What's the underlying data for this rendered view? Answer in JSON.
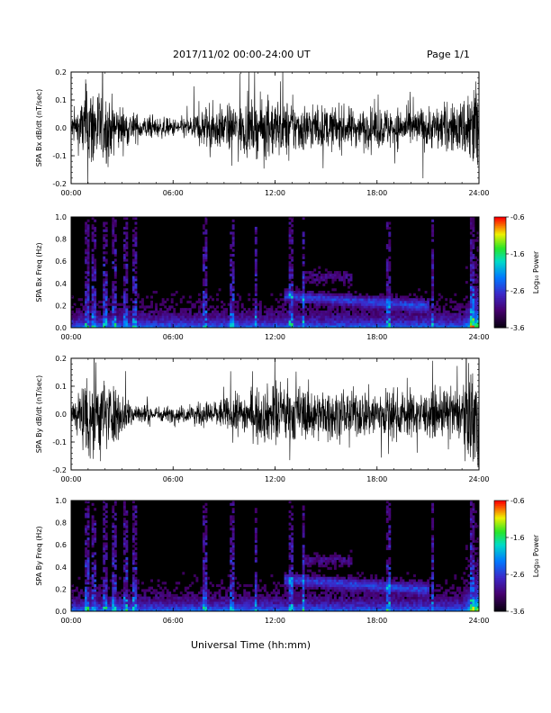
{
  "header": {
    "date_range": "2017/11/02  00:00-24:00 UT",
    "page": "Page 1/1"
  },
  "xaxis_title": "Universal Time (hh:mm)",
  "colorbar": {
    "label": "Log₁₀ Power",
    "ticks": [
      "-0.6",
      "-1.6",
      "-2.6",
      "-3.6"
    ],
    "range": [
      -3.6,
      -0.6
    ]
  },
  "chart_data": [
    {
      "type": "line",
      "ylabel": "SPA Bx dB/dt (nT/sec)",
      "xlim": [
        0,
        24
      ],
      "ylim": [
        -0.2,
        0.2
      ],
      "xticks": [
        "00:00",
        "06:00",
        "12:00",
        "18:00",
        "24:00"
      ],
      "yticks": [
        "0.2",
        "0.1",
        "0.0",
        "-0.1",
        "-0.2"
      ],
      "series": [
        {
          "envelope_hours": [
            0,
            0.5,
            1,
            1.5,
            2,
            3,
            4,
            5,
            6,
            7,
            8,
            9,
            10,
            11,
            12,
            13,
            14,
            15,
            16,
            17,
            18,
            19,
            20,
            21,
            22,
            23,
            23.5,
            24
          ],
          "amplitude": [
            0.05,
            0.09,
            0.2,
            0.16,
            0.13,
            0.08,
            0.05,
            0.04,
            0.035,
            0.045,
            0.09,
            0.08,
            0.1,
            0.1,
            0.12,
            0.1,
            0.09,
            0.08,
            0.08,
            0.07,
            0.08,
            0.08,
            0.07,
            0.08,
            0.09,
            0.1,
            0.2,
            0.2
          ]
        }
      ]
    },
    {
      "type": "heatmap",
      "ylabel": "SPA Bx Freq (Hz)",
      "xlim": [
        0,
        24
      ],
      "ylim": [
        0,
        1.0
      ],
      "xticks": [
        "00:00",
        "06:00",
        "12:00",
        "18:00",
        "24:00"
      ],
      "yticks": [
        "1.0",
        "0.8",
        "0.6",
        "0.4",
        "0.2",
        "0.0"
      ],
      "colorbar_label": "Log₁₀ Power",
      "colorbar_range": [
        -3.6,
        -0.6
      ]
    },
    {
      "type": "line",
      "ylabel": "SPA By dB/dt (nT/sec)",
      "xlim": [
        0,
        24
      ],
      "ylim": [
        -0.2,
        0.2
      ],
      "xticks": [
        "00:00",
        "06:00",
        "12:00",
        "18:00",
        "24:00"
      ],
      "yticks": [
        "0.2",
        "0.1",
        "0.0",
        "-0.1",
        "-0.2"
      ],
      "series": [
        {
          "envelope_hours": [
            0,
            0.5,
            1,
            1.5,
            2,
            3,
            4,
            5,
            6,
            7,
            8,
            9,
            10,
            11,
            12,
            13,
            14,
            15,
            16,
            17,
            18,
            19,
            20,
            21,
            22,
            23,
            23.5,
            24
          ],
          "amplitude": [
            0.05,
            0.09,
            0.2,
            0.18,
            0.14,
            0.08,
            0.04,
            0.03,
            0.03,
            0.035,
            0.05,
            0.06,
            0.08,
            0.09,
            0.12,
            0.11,
            0.1,
            0.09,
            0.09,
            0.09,
            0.1,
            0.09,
            0.09,
            0.08,
            0.09,
            0.1,
            0.2,
            0.2
          ]
        }
      ]
    },
    {
      "type": "heatmap",
      "ylabel": "SPA By Freq (Hz)",
      "xlim": [
        0,
        24
      ],
      "ylim": [
        0,
        1.0
      ],
      "xticks": [
        "00:00",
        "06:00",
        "12:00",
        "18:00",
        "24:00"
      ],
      "yticks": [
        "1.0",
        "0.8",
        "0.6",
        "0.4",
        "0.2",
        "0.0"
      ],
      "colorbar_label": "Log₁₀ Power",
      "colorbar_range": [
        -3.6,
        -0.6
      ]
    }
  ]
}
